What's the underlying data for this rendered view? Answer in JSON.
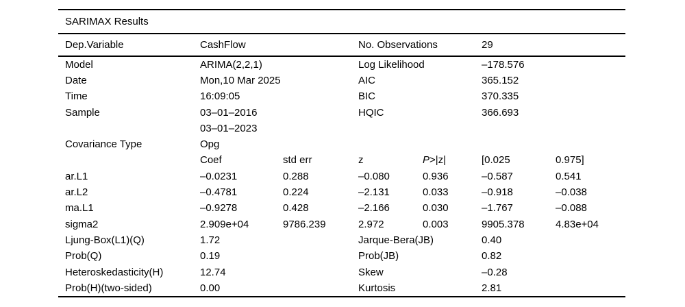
{
  "title": "SARIMAX Results",
  "header": {
    "dep_variable_label": "Dep.Variable",
    "dep_variable_value": "CashFlow",
    "no_obs_label": "No. Observations",
    "no_obs_value": "29"
  },
  "info": {
    "model_label": "Model",
    "model_value": "ARIMA(2,2,1)",
    "loglik_label": "Log Likelihood",
    "loglik_value": "–178.576",
    "date_label": "Date",
    "date_value": "Mon,10 Mar 2025",
    "aic_label": "AIC",
    "aic_value": "365.152",
    "time_label": "Time",
    "time_value": "16:09:05",
    "bic_label": "BIC",
    "bic_value": "370.335",
    "sample_label": "Sample",
    "sample_value_start": "03–01–2016",
    "sample_value_end": "03–01–2023",
    "hqic_label": "HQIC",
    "hqic_value": "366.693",
    "cov_type_label": "Covariance Type",
    "cov_type_value": "Opg"
  },
  "coef_table": {
    "columns": {
      "coef": "Coef",
      "std_err": "std err",
      "z": "z",
      "p_italic": "P",
      "p_rest": ">|z|",
      "ci_low": "[0.025",
      "ci_high": "0.975]"
    },
    "rows": [
      {
        "name": "ar.L1",
        "coef": "–0.0231",
        "std_err": "0.288",
        "z": "–0.080",
        "p": "0.936",
        "ci_low": "–0.587",
        "ci_high": "0.541"
      },
      {
        "name": "ar.L2",
        "coef": "–0.4781",
        "std_err": "0.224",
        "z": "–2.131",
        "p": "0.033",
        "ci_low": "–0.918",
        "ci_high": "–0.038"
      },
      {
        "name": "ma.L1",
        "coef": "–0.9278",
        "std_err": "0.428",
        "z": "–2.166",
        "p": "0.030",
        "ci_low": "–1.767",
        "ci_high": "–0.088"
      },
      {
        "name": "sigma2",
        "coef": "2.909e+04",
        "std_err": "9786.239",
        "z": "2.972",
        "p": "0.003",
        "ci_low": "9905.378",
        "ci_high": "4.83e+04"
      }
    ]
  },
  "diagnostics": {
    "rows": [
      {
        "left_label": "Ljung-Box(L1)(Q)",
        "left_value": "1.72",
        "right_label": "Jarque-Bera(JB)",
        "right_value": "0.40"
      },
      {
        "left_label": "Prob(Q)",
        "left_value": "0.19",
        "right_label": "Prob(JB)",
        "right_value": "0.82"
      },
      {
        "left_label": "Heteroskedasticity(H)",
        "left_value": "12.74",
        "right_label": "Skew",
        "right_value": "–0.28"
      },
      {
        "left_label": "Prob(H)(two-sided)",
        "left_value": "0.00",
        "right_label": "Kurtosis",
        "right_value": "2.81"
      }
    ]
  }
}
